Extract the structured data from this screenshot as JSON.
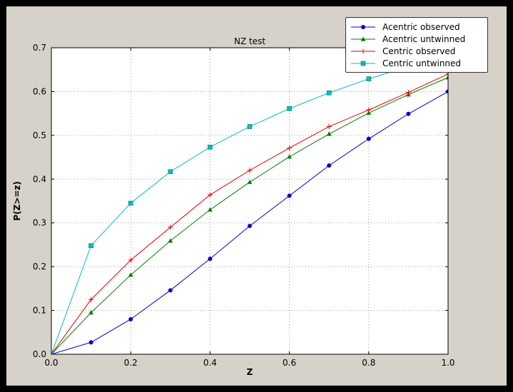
{
  "window": {
    "border_color": "#000000",
    "figure_background": "#d6d2ca",
    "plot_background": "#ffffff"
  },
  "chart_data": {
    "type": "line",
    "title": "NZ test",
    "xlabel": "Z",
    "ylabel": "P(Z>=z)",
    "xlim": [
      0.0,
      1.0
    ],
    "ylim": [
      0.0,
      0.7
    ],
    "xticks": [
      0.0,
      0.2,
      0.4,
      0.6,
      0.8,
      1.0
    ],
    "yticks": [
      0.0,
      0.1,
      0.2,
      0.3,
      0.4,
      0.5,
      0.6,
      0.7
    ],
    "grid": true,
    "grid_style": "dotted",
    "legend_position": "upper right",
    "x": [
      0.0,
      0.1,
      0.2,
      0.3,
      0.4,
      0.5,
      0.6,
      0.7,
      0.8,
      0.9,
      1.0
    ],
    "series": [
      {
        "name": "Acentric observed",
        "color": "#0000cc",
        "marker": "circle",
        "values": [
          0.0,
          0.027,
          0.08,
          0.146,
          0.218,
          0.293,
          0.362,
          0.431,
          0.492,
          0.549,
          0.6
        ]
      },
      {
        "name": "Acentric untwinned",
        "color": "#007f00",
        "marker": "triangle",
        "values": [
          0.0,
          0.095,
          0.181,
          0.259,
          0.33,
          0.393,
          0.451,
          0.503,
          0.551,
          0.593,
          0.632
        ]
      },
      {
        "name": "Centric observed",
        "color": "#e00000",
        "marker": "plus",
        "values": [
          0.0,
          0.125,
          0.215,
          0.29,
          0.364,
          0.42,
          0.471,
          0.52,
          0.558,
          0.598,
          0.64
        ]
      },
      {
        "name": "Centric untwinned",
        "color": "#00bfbf",
        "marker": "square",
        "values": [
          0.0,
          0.248,
          0.345,
          0.417,
          0.473,
          0.52,
          0.561,
          0.597,
          0.629,
          0.657,
          0.683
        ]
      }
    ]
  }
}
